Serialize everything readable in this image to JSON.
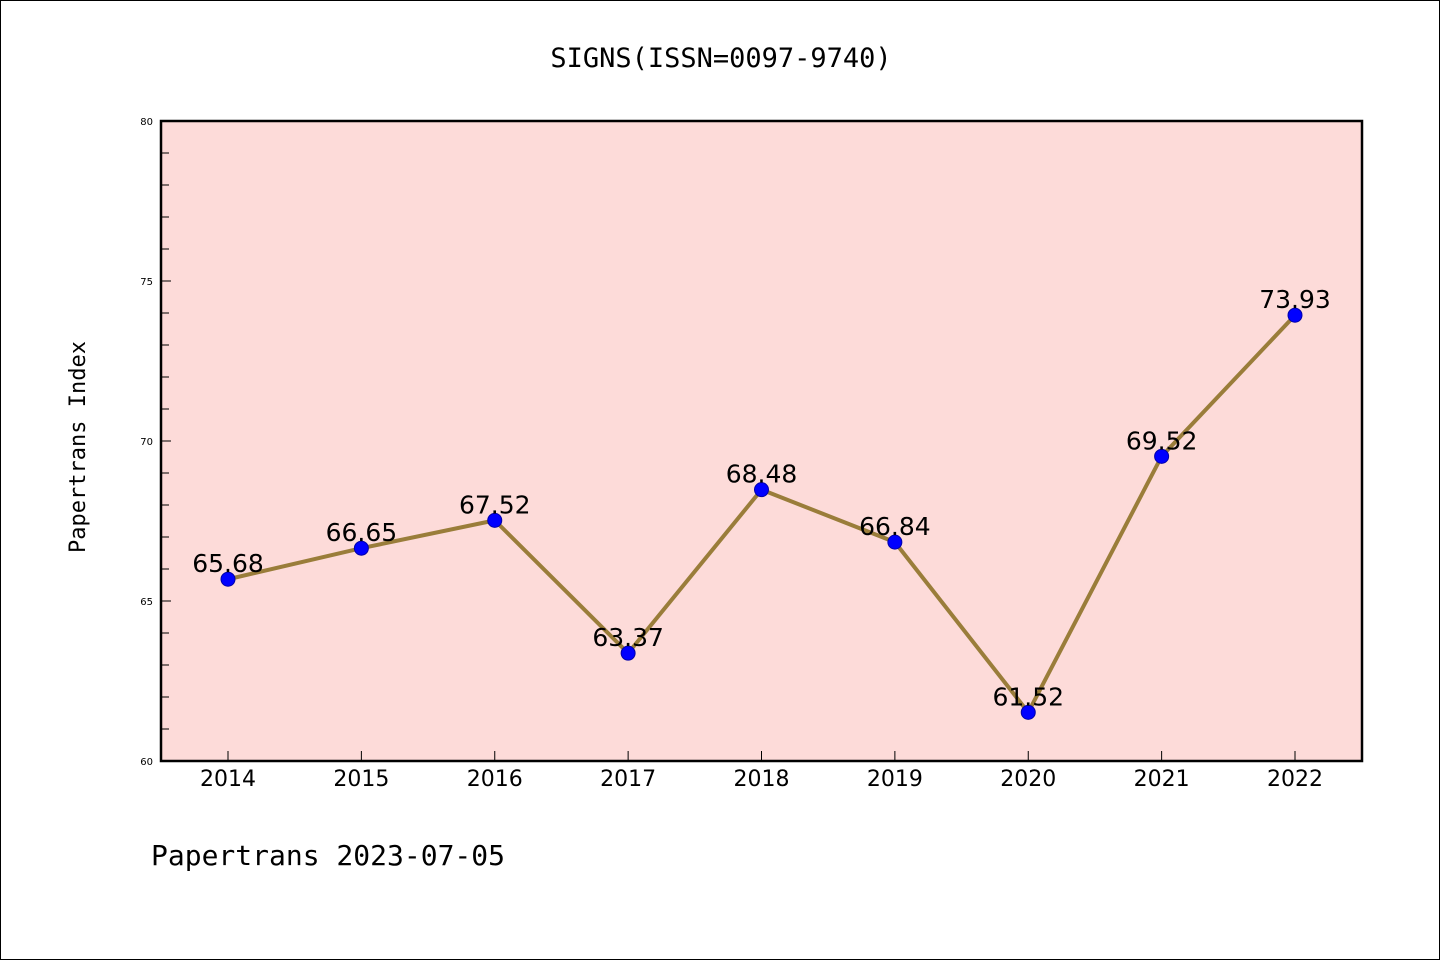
{
  "chart_data": {
    "type": "line",
    "title": "SIGNS(ISSN=0097-9740)",
    "xlabel": "",
    "ylabel": "Papertrans Index",
    "categories": [
      "2014",
      "2015",
      "2016",
      "2017",
      "2018",
      "2019",
      "2020",
      "2021",
      "2022"
    ],
    "series": [
      {
        "values": [
          65.68,
          66.65,
          67.52,
          63.37,
          68.48,
          66.84,
          61.52,
          69.52,
          73.93
        ],
        "data_labels": [
          "65.68",
          "66.65",
          "67.52",
          "63.37",
          "68.48",
          "66.84",
          "61.52",
          "69.52",
          "73.93"
        ],
        "line_color": "#9a7d3a",
        "marker_color": "#0000ff"
      }
    ],
    "ylim": [
      60,
      80
    ],
    "y_ticks": [
      "60",
      "65",
      "70",
      "75",
      "80"
    ],
    "grid": false,
    "legend": "none",
    "plot_background": "#fddbd9"
  },
  "footer": {
    "text": "Papertrans 2023-07-05"
  }
}
